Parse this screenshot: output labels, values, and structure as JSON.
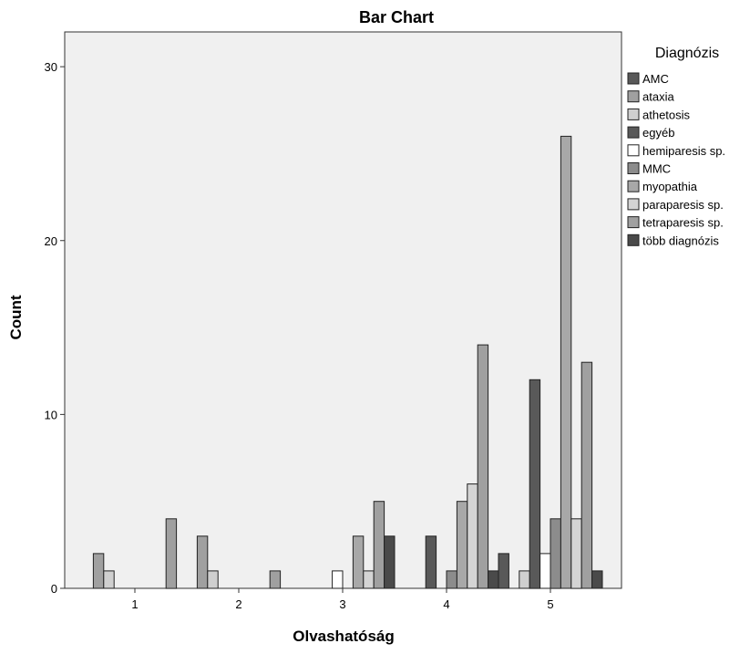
{
  "chart_data": {
    "type": "bar",
    "title": "Bar Chart",
    "xlabel": "Olvashatóság",
    "ylabel": "Count",
    "categories": [
      "1",
      "2",
      "3",
      "4",
      "5"
    ],
    "yticks": [
      "0",
      "10",
      "20",
      "30"
    ],
    "ylim": [
      0,
      32
    ],
    "legend_title": "Diagnózis",
    "legend_position": "right",
    "series": [
      {
        "name": "AMC",
        "color": "#595959",
        "values": [
          0,
          0,
          0,
          0,
          2
        ]
      },
      {
        "name": "ataxia",
        "color": "#a0a0a0",
        "values": [
          2,
          3,
          0,
          0,
          0
        ]
      },
      {
        "name": "athetosis",
        "color": "#cfcfcf",
        "values": [
          1,
          1,
          0,
          0,
          1
        ]
      },
      {
        "name": "egyéb",
        "color": "#595959",
        "values": [
          0,
          0,
          0,
          3,
          12
        ]
      },
      {
        "name": "hemiparesis sp.",
        "color": "#ffffff",
        "values": [
          0,
          0,
          1,
          0,
          2
        ]
      },
      {
        "name": "MMC",
        "color": "#8c8c8c",
        "values": [
          0,
          0,
          0,
          1,
          4
        ]
      },
      {
        "name": "myopathia",
        "color": "#a8a8a8",
        "values": [
          0,
          0,
          3,
          5,
          26
        ]
      },
      {
        "name": "paraparesis sp.",
        "color": "#d4d4d4",
        "values": [
          0,
          0,
          1,
          6,
          4
        ]
      },
      {
        "name": "tetraparesis sp.",
        "color": "#a0a0a0",
        "values": [
          4,
          1,
          5,
          14,
          13
        ]
      },
      {
        "name": "több diagnózis",
        "color": "#4a4a4a",
        "values": [
          0,
          0,
          3,
          1,
          1
        ]
      }
    ]
  }
}
